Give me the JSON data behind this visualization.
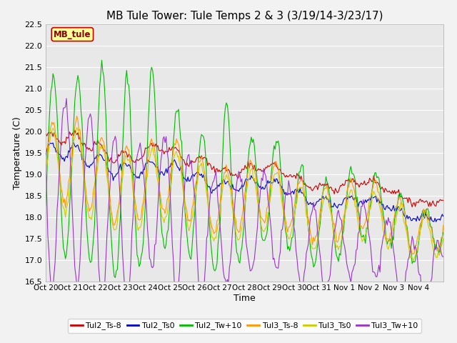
{
  "title": "MB Tule Tower: Tule Temps 2 & 3 (3/19/14-3/23/17)",
  "xlabel": "Time",
  "ylabel": "Temperature (C)",
  "ylim": [
    16.5,
    22.5
  ],
  "n_days": 16,
  "xtick_labels": [
    "Oct 20",
    "Oct 21",
    "Oct 22",
    "Oct 23",
    "Oct 24",
    "Oct 25",
    "Oct 26",
    "Oct 27",
    "Oct 28",
    "Oct 29",
    "Oct 30",
    "Oct 31",
    "Nov 1",
    "Nov 2",
    "Nov 3",
    "Nov 4"
  ],
  "annotation_text": "MB_tule",
  "annotation_color": "#880000",
  "annotation_bg": "#ffff99",
  "series": [
    {
      "label": "Tul2_Ts-8",
      "color": "#cc0000"
    },
    {
      "label": "Tul2_Ts0",
      "color": "#0000cc"
    },
    {
      "label": "Tul2_Tw+10",
      "color": "#00bb00"
    },
    {
      "label": "Tul3_Ts-8",
      "color": "#ff9900"
    },
    {
      "label": "Tul3_Ts0",
      "color": "#cccc00"
    },
    {
      "label": "Tul3_Tw+10",
      "color": "#9933cc"
    }
  ],
  "plot_bg": "#e8e8e8",
  "grid_color": "#ffffff",
  "title_fontsize": 11,
  "fig_bg": "#f2f2f2"
}
